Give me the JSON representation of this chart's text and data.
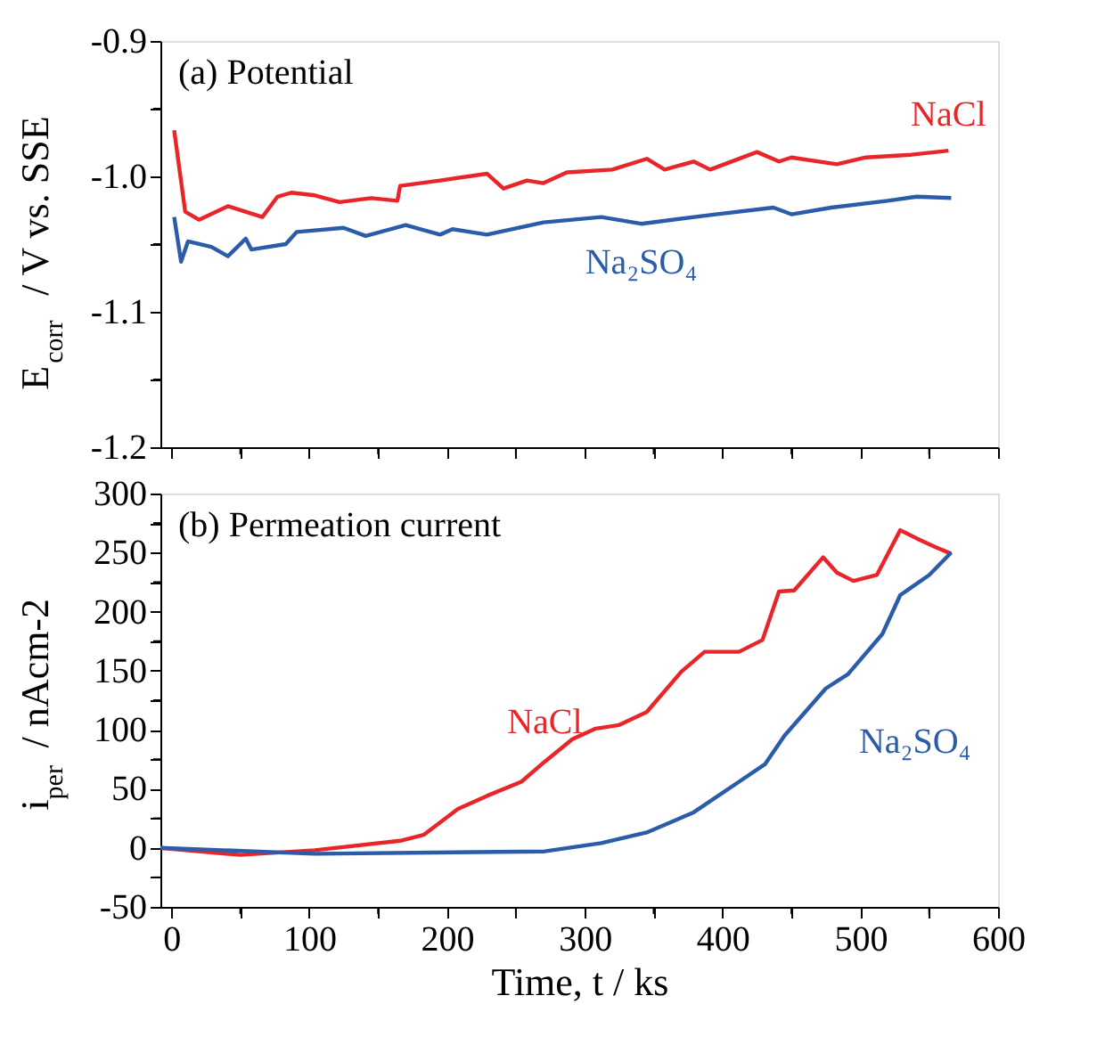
{
  "chart_data": [
    {
      "type": "line",
      "ylabel": "E$_{corr}$ / V vs. SSE",
      "annotations": [
        "(a) Potential"
      ],
      "xlim": [
        -8,
        600
      ],
      "xticks": [
        0,
        {
          "value": 50,
          "label": null
        },
        100,
        {
          "value": 150,
          "label": null
        },
        200,
        {
          "value": 250,
          "label": null
        },
        300,
        {
          "value": 350,
          "label": null
        },
        400,
        {
          "value": 450,
          "label": null
        },
        500,
        {
          "value": 550,
          "label": null
        },
        600
      ],
      "ylim": [
        -1.2,
        -0.9
      ],
      "yticks": [
        -1.2,
        {
          "value": -1.15,
          "label": null
        },
        -1.1,
        {
          "value": -1.05,
          "label": null
        },
        {
          "value": -1.0,
          "label": "-1.0"
        },
        {
          "value": -0.95,
          "label": null
        },
        -0.9
      ],
      "tick_labels": "y",
      "grid": false,
      "legend": false,
      "line_style": "solid",
      "marker": "none",
      "series": [
        {
          "name": "NaCl",
          "color": "#e8262a",
          "x": [
            2,
            10,
            20,
            41,
            66,
            77,
            87,
            104,
            122,
            145,
            164,
            166,
            195,
            229,
            241,
            258,
            270,
            287,
            320,
            345,
            358,
            379,
            391,
            425,
            441,
            450,
            483,
            504,
            537,
            564
          ],
          "values": [
            -0.966,
            -1.026,
            -1.032,
            -1.022,
            -1.03,
            -1.015,
            -1.012,
            -1.014,
            -1.019,
            -1.016,
            -1.018,
            -1.007,
            -1.003,
            -0.998,
            -1.009,
            -1.003,
            -1.005,
            -0.997,
            -0.995,
            -0.987,
            -0.995,
            -0.989,
            -0.995,
            -0.982,
            -0.989,
            -0.986,
            -0.991,
            -0.986,
            -0.984,
            -0.981
          ]
        },
        {
          "name": "Na₂SO₄",
          "color": "#2a5caa",
          "x": [
            2,
            7,
            12,
            29,
            41,
            54,
            58,
            83,
            91,
            125,
            141,
            170,
            195,
            204,
            229,
            270,
            312,
            341,
            395,
            437,
            450,
            479,
            520,
            541,
            566
          ],
          "values": [
            -1.03,
            -1.063,
            -1.048,
            -1.052,
            -1.059,
            -1.046,
            -1.054,
            -1.05,
            -1.041,
            -1.038,
            -1.044,
            -1.036,
            -1.043,
            -1.039,
            -1.043,
            -1.034,
            -1.03,
            -1.035,
            -1.028,
            -1.023,
            -1.028,
            -1.023,
            -1.018,
            -1.015,
            -1.016
          ]
        }
      ]
    },
    {
      "type": "line",
      "xlabel": "Time, t / ks",
      "ylabel": "i$_{per}$ / nAcm-2",
      "annotations": [
        "(b) Permeation current"
      ],
      "xlim": [
        -8,
        600
      ],
      "xticks": [
        0,
        {
          "value": 50,
          "label": null
        },
        100,
        {
          "value": 150,
          "label": null
        },
        200,
        {
          "value": 250,
          "label": null
        },
        300,
        {
          "value": 350,
          "label": null
        },
        400,
        {
          "value": 450,
          "label": null
        },
        500,
        {
          "value": 550,
          "label": null
        },
        600
      ],
      "ylim": [
        -50,
        300
      ],
      "yticks": [
        -50,
        {
          "value": -25,
          "label": null
        },
        0,
        {
          "value": 25,
          "label": null
        },
        50,
        {
          "value": 75,
          "label": null
        },
        100,
        {
          "value": 125,
          "label": null
        },
        150,
        {
          "value": 175,
          "label": null
        },
        200,
        {
          "value": 225,
          "label": null
        },
        250,
        {
          "value": 275,
          "label": null
        },
        300
      ],
      "grid": false,
      "legend": false,
      "line_style": "solid",
      "marker": "none",
      "series": [
        {
          "name": "NaCl",
          "color": "#e8262a",
          "x": [
            -8,
            50,
            104,
            166,
            183,
            208,
            229,
            254,
            271,
            291,
            308,
            325,
            345,
            370,
            387,
            412,
            429,
            441,
            452,
            473,
            483,
            495,
            512,
            529,
            541,
            554,
            566
          ],
          "values": [
            0,
            -6,
            -2,
            6,
            11,
            33,
            44,
            56,
            73,
            92,
            101,
            104,
            115,
            149,
            166,
            166,
            176,
            217,
            218,
            246,
            233,
            226,
            231,
            269,
            262,
            255,
            249
          ]
        },
        {
          "name": "Na₂SO₄",
          "color": "#2a5caa",
          "x": [
            -8,
            104,
            271,
            312,
            345,
            379,
            412,
            431,
            445,
            475,
            491,
            516,
            529,
            550,
            566
          ],
          "values": [
            0,
            -5,
            -3,
            4,
            13,
            30,
            56,
            71,
            95,
            135,
            147,
            181,
            214,
            231,
            250
          ]
        }
      ]
    }
  ]
}
